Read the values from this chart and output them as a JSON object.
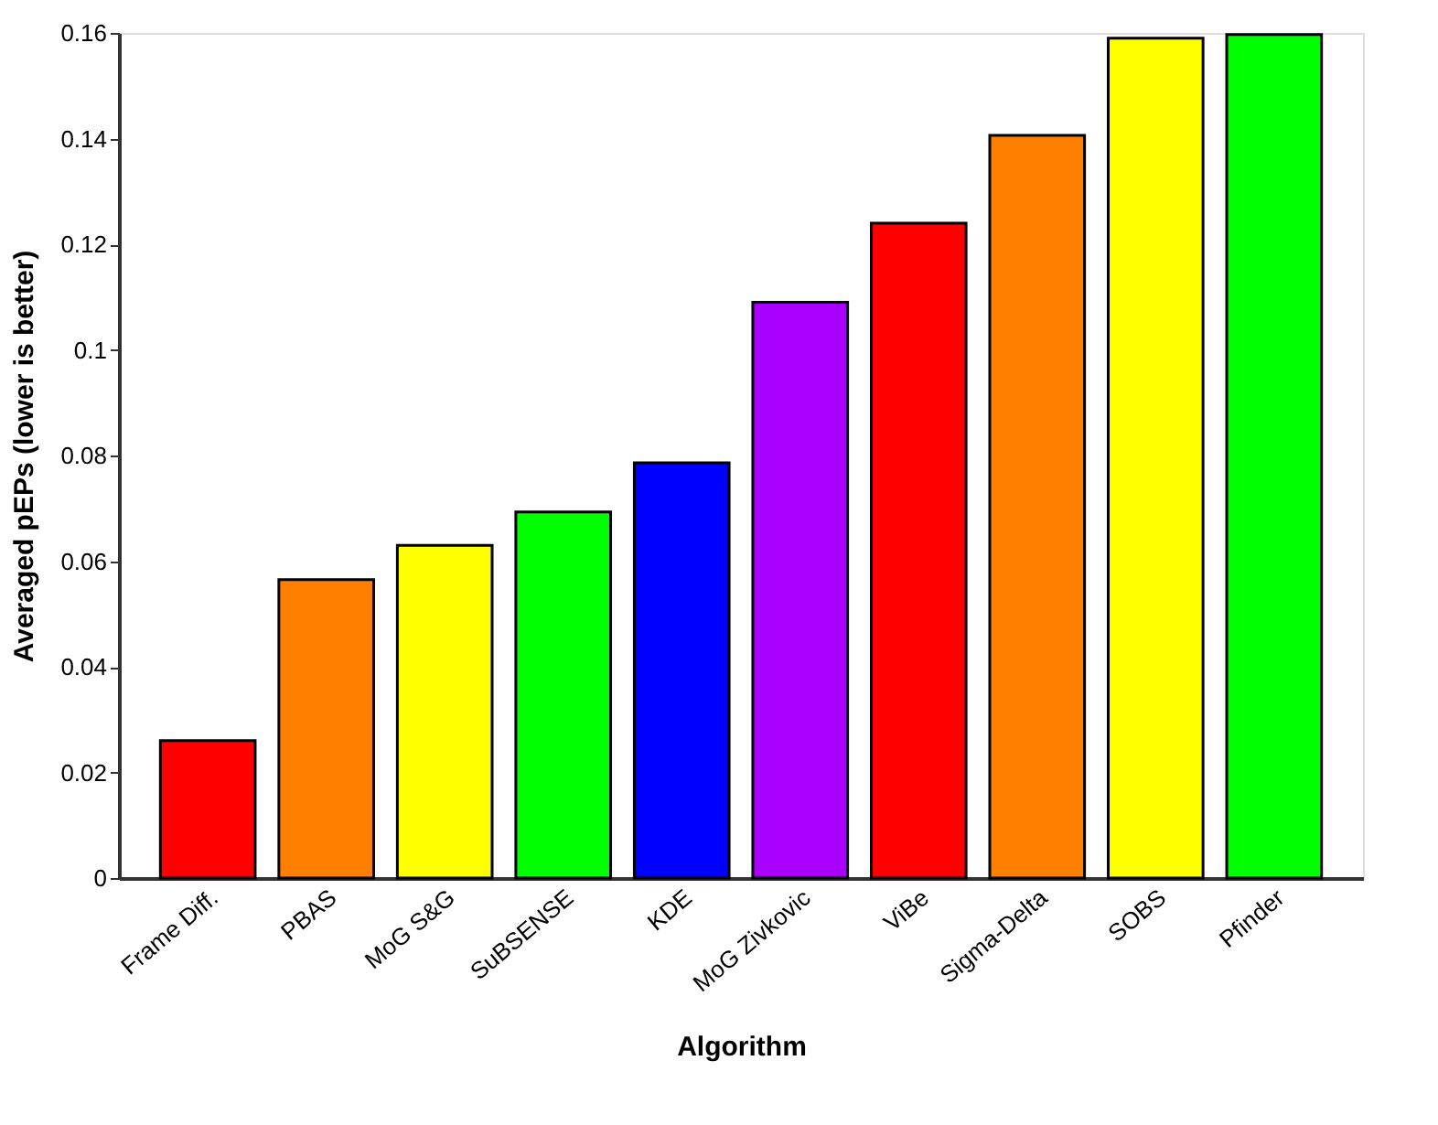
{
  "chart_data": {
    "type": "bar",
    "xlabel": "Algorithm",
    "ylabel": "Averaged pEPs (lower is better)",
    "categories": [
      "Frame Diff.",
      "PBAS",
      "MoG S&G",
      "SuBSENSE",
      "KDE",
      "MoG Zivkovic",
      "ViBe",
      "Sigma-Delta",
      "SOBS",
      "Pfinder"
    ],
    "values": [
      0.026,
      0.0565,
      0.063,
      0.0693,
      0.0786,
      0.109,
      0.124,
      0.1406,
      0.159,
      0.1597
    ],
    "colors": [
      "#ff0000",
      "#ff8000",
      "#ffff00",
      "#00ff00",
      "#0000ff",
      "#aa00ff",
      "#ff0000",
      "#ff8000",
      "#ffff00",
      "#00ff00"
    ],
    "ylim": [
      0,
      0.16
    ],
    "yticks": [
      0,
      0.02,
      0.04,
      0.06,
      0.08,
      {
        "value": 0.1,
        "label": "0.1"
      },
      0.12,
      0.14,
      0.16
    ],
    "grid": false
  }
}
